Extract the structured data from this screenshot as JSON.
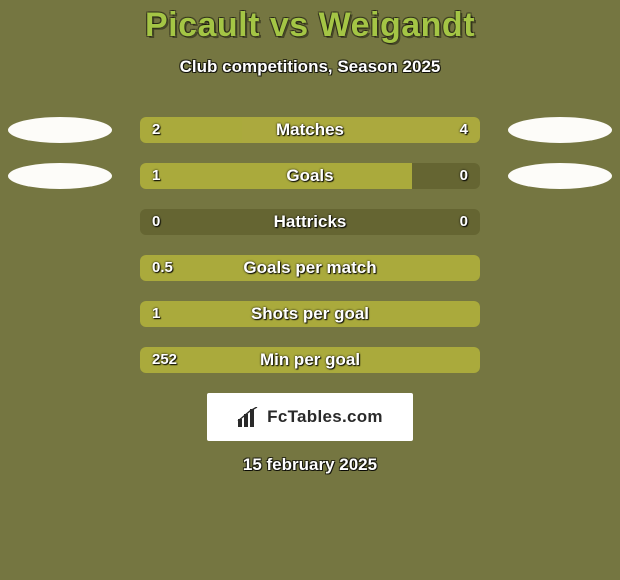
{
  "background_color": "#757641",
  "title": {
    "player1": "Picault",
    "player2": "Weigandt",
    "sep": " vs ",
    "fontsize": 34,
    "color": "#a4c545"
  },
  "subtitle": {
    "text": "Club competitions, Season 2025",
    "fontsize": 17,
    "fontweight": "700"
  },
  "bar_track_color": "#656532",
  "bar_left_color": "#aaaa3c",
  "bar_right_color": "#aba93e",
  "label_fontsize": 17,
  "label_fontweight": "700",
  "value_fontsize": 15,
  "value_fontweight": "700",
  "ellipse_left_color": "#fdfcf9",
  "ellipse_right_color": "#fdfcf9",
  "footer": {
    "badge_bg": "#ffffff",
    "label": "FcTables.com",
    "fontsize": 17,
    "icon_color": "#2a2a2a",
    "date": "15 february 2025",
    "date_fontsize": 17,
    "date_fontweight": "700"
  },
  "stats": [
    {
      "label": "Matches",
      "left_value": "2",
      "right_value": "4",
      "left_pct": 30,
      "right_pct": 70,
      "show_ellipses": true
    },
    {
      "label": "Goals",
      "left_value": "1",
      "right_value": "0",
      "left_pct": 80,
      "right_pct": 0,
      "show_ellipses": true
    },
    {
      "label": "Hattricks",
      "left_value": "0",
      "right_value": "0",
      "left_pct": 0,
      "right_pct": 0,
      "show_ellipses": false
    },
    {
      "label": "Goals per match",
      "left_value": "0.5",
      "right_value": "",
      "left_pct": 100,
      "right_pct": 0,
      "show_ellipses": false
    },
    {
      "label": "Shots per goal",
      "left_value": "1",
      "right_value": "",
      "left_pct": 100,
      "right_pct": 0,
      "show_ellipses": false
    },
    {
      "label": "Min per goal",
      "left_value": "252",
      "right_value": "",
      "left_pct": 100,
      "right_pct": 0,
      "show_ellipses": false
    }
  ]
}
